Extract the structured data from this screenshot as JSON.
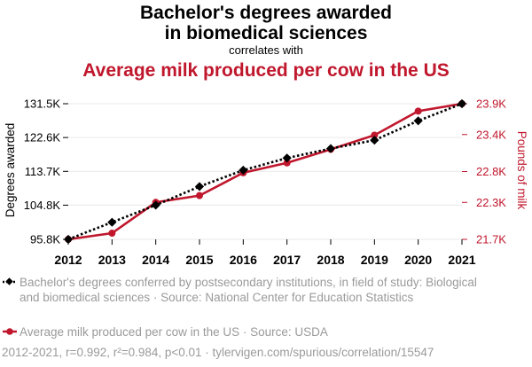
{
  "header": {
    "title": "Bachelor's degrees awarded in biomedical sciences",
    "subtitle": "correlates with",
    "title_secondary": "Average milk produced per cow in the US",
    "title_secondary_color": "#c0172d"
  },
  "chart_data": {
    "type": "line",
    "x": [
      2012,
      2013,
      2014,
      2015,
      2016,
      2017,
      2018,
      2019,
      2020,
      2021
    ],
    "y_left": {
      "label": "Degrees awarded",
      "ticks": [
        "95.8K",
        "104.8K",
        "113.7K",
        "122.6K",
        "131.5K"
      ],
      "tick_values": [
        95800,
        104800,
        113700,
        122600,
        131500
      ],
      "range": [
        95800,
        131500
      ]
    },
    "y_right": {
      "label": "Pounds of milk",
      "ticks": [
        "21.7K",
        "22.3K",
        "22.8K",
        "23.4K",
        "23.9K"
      ],
      "tick_values": [
        21700,
        22300,
        22800,
        23400,
        23900
      ],
      "range": [
        21700,
        23900
      ]
    },
    "series": [
      {
        "name": "Bachelor's degrees conferred by postsecondary institutions, in field of study: Biological and biomedical sciences · Source: National Center for Education Statistics",
        "axis": "left",
        "color": "#000000",
        "style": "dotted",
        "marker": "diamond",
        "values": [
          95800,
          100300,
          104800,
          109700,
          114000,
          117200,
          119700,
          121900,
          127000,
          131500
        ]
      },
      {
        "name": "Average milk produced per cow in the US · Source: USDA",
        "axis": "right",
        "color": "#c0172d",
        "style": "solid",
        "marker": "circle",
        "values": [
          21700,
          21800,
          22300,
          22410,
          22780,
          22940,
          23160,
          23390,
          23780,
          23900
        ]
      }
    ],
    "grid": true,
    "legend_position": "bottom"
  },
  "footer": {
    "text": "2012-2021, r=0.992, r²=0.984, p<0.01 · tylervigen.com/spurious/correlation/15547"
  }
}
